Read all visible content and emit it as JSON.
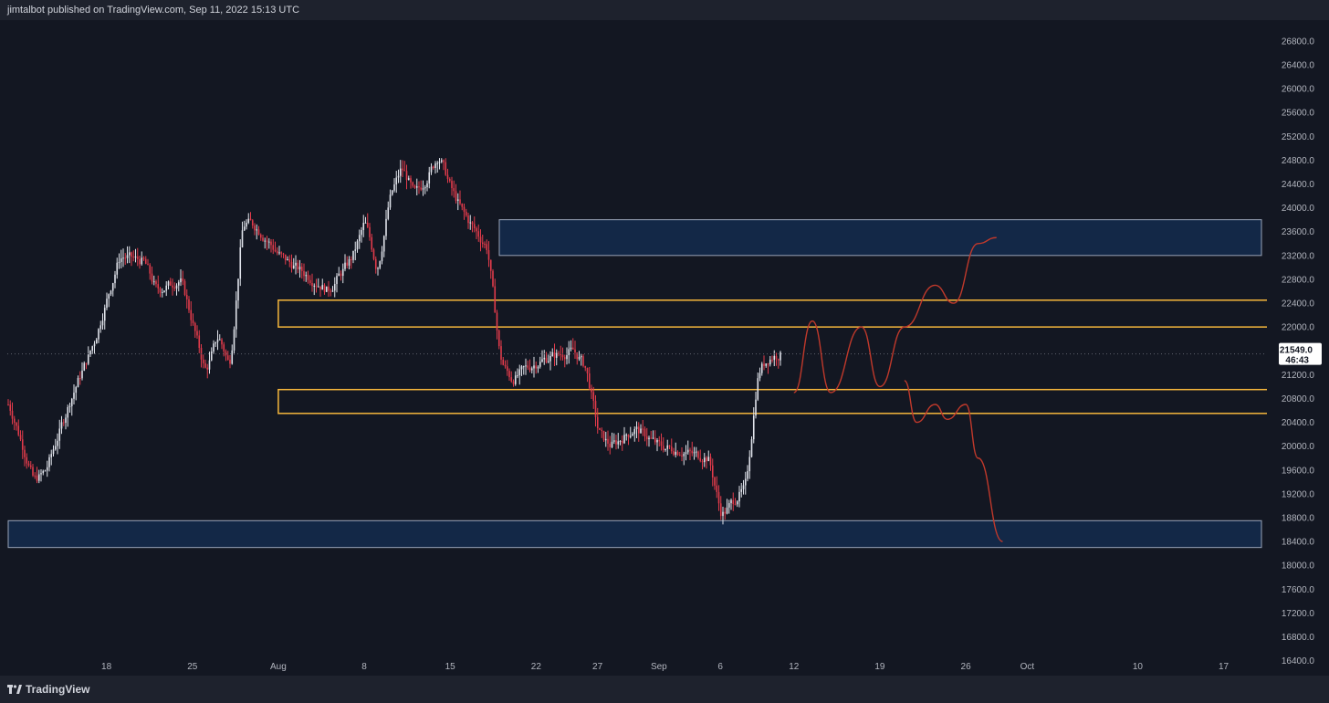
{
  "header": {
    "published": "jimtalbot published on TradingView.com, Sep 11, 2022 15:13 UTC"
  },
  "footer": {
    "brand": "TradingView",
    "logo_icon": "tradingview-logo-icon"
  },
  "colors": {
    "background": "#131722",
    "up": "#e0e3eb",
    "down": "#e23b4b",
    "zone_blue": "#132847",
    "zone_yellow": "#f6b73c",
    "projection": "#c0392b"
  },
  "chart_data": {
    "type": "candlestick",
    "symbol_note": "BTC price chart",
    "y_ticks": [
      "26800.0",
      "26400.0",
      "26000.0",
      "25600.0",
      "25200.0",
      "24800.0",
      "24400.0",
      "24000.0",
      "23600.0",
      "23200.0",
      "22800.0",
      "22400.0",
      "22000.0",
      "21200.0",
      "20800.0",
      "20400.0",
      "20000.0",
      "19600.0",
      "19200.0",
      "18800.0",
      "18400.0",
      "18000.0",
      "17600.0",
      "17200.0",
      "16800.0",
      "16400.0"
    ],
    "x_ticks": [
      "18",
      "25",
      "Aug",
      "8",
      "15",
      "22",
      "27",
      "Sep",
      "6",
      "12",
      "19",
      "26",
      "Oct",
      "10",
      "17"
    ],
    "ylim": [
      16150,
      27150
    ],
    "last_price": "21549.0",
    "countdown": "46:43",
    "zones": [
      {
        "kind": "supply",
        "color": "blue",
        "from_date": "Aug 19",
        "to": "right-edge",
        "low": 23200,
        "high": 23800
      },
      {
        "kind": "resistance",
        "color": "yellow",
        "from_date": "Aug 1",
        "to": "Oct 25",
        "low": 22000,
        "high": 22450
      },
      {
        "kind": "support",
        "color": "yellow",
        "from_date": "Aug 1",
        "to": "Oct 25",
        "low": 20550,
        "high": 20950
      },
      {
        "kind": "demand",
        "color": "blue",
        "from_date": "Jul 10",
        "to": "right-edge",
        "low": 18300,
        "high": 18750
      }
    ],
    "price_path": [
      [
        "Jul 10",
        20700
      ],
      [
        "Jul 12",
        19400
      ],
      [
        "Jul 13",
        19600
      ],
      [
        "Jul 15",
        20800
      ],
      [
        "Jul 17",
        21800
      ],
      [
        "Jul 19",
        23200
      ],
      [
        "Jul 21",
        23100
      ],
      [
        "Jul 22",
        22600
      ],
      [
        "Jul 24",
        22800
      ],
      [
        "Jul 26",
        21200
      ],
      [
        "Jul 27",
        21900
      ],
      [
        "Jul 28",
        21300
      ],
      [
        "Jul 29",
        23800
      ],
      [
        "Jul 30",
        23700
      ],
      [
        "Aug 1",
        23200
      ],
      [
        "Aug 3",
        22900
      ],
      [
        "Aug 5",
        22600
      ],
      [
        "Aug 7",
        23200
      ],
      [
        "Aug 8",
        23800
      ],
      [
        "Aug 9",
        22900
      ],
      [
        "Aug 10",
        24200
      ],
      [
        "Aug 11",
        24700
      ],
      [
        "Aug 12",
        24200
      ],
      [
        "Aug 13",
        24500
      ],
      [
        "Aug 14",
        24900
      ],
      [
        "Aug 15",
        24300
      ],
      [
        "Aug 16",
        23900
      ],
      [
        "Aug 17",
        23600
      ],
      [
        "Aug 18",
        23300
      ],
      [
        "Aug 19",
        21400
      ],
      [
        "Aug 20",
        21100
      ],
      [
        "Aug 21",
        21300
      ],
      [
        "Aug 23",
        21500
      ],
      [
        "Aug 25",
        21600
      ],
      [
        "Aug 26",
        21300
      ],
      [
        "Aug 27",
        20200
      ],
      [
        "Aug 28",
        20000
      ],
      [
        "Aug 30",
        20300
      ],
      [
        "Sep 1",
        20000
      ],
      [
        "Sep 3",
        19900
      ],
      [
        "Sep 5",
        19800
      ],
      [
        "Sep 6",
        18800
      ],
      [
        "Sep 7",
        19100
      ],
      [
        "Sep 8",
        19300
      ],
      [
        "Sep 9",
        21300
      ],
      [
        "Sep 10",
        21500
      ],
      [
        "Sep 11",
        21549
      ]
    ],
    "projections": [
      {
        "name": "bull",
        "points": [
          [
            "Sep 12",
            20900
          ],
          [
            "Sep 13.5",
            22100
          ],
          [
            "Sep 15",
            20900
          ],
          [
            "Sep 17.5",
            22000
          ],
          [
            "Sep 19",
            21000
          ],
          [
            "Sep 21",
            22000
          ],
          [
            "Sep 23.5",
            22700
          ],
          [
            "Sep 25",
            22400
          ],
          [
            "Sep 27",
            23400
          ],
          [
            "Sep 28.5",
            23500
          ]
        ]
      },
      {
        "name": "bear",
        "points": [
          [
            "Sep 21",
            21100
          ],
          [
            "Sep 22",
            20400
          ],
          [
            "Sep 23.5",
            20700
          ],
          [
            "Sep 24.5",
            20450
          ],
          [
            "Sep 26",
            20700
          ],
          [
            "Sep 27",
            19800
          ],
          [
            "Sep 29",
            18400
          ]
        ]
      }
    ]
  }
}
